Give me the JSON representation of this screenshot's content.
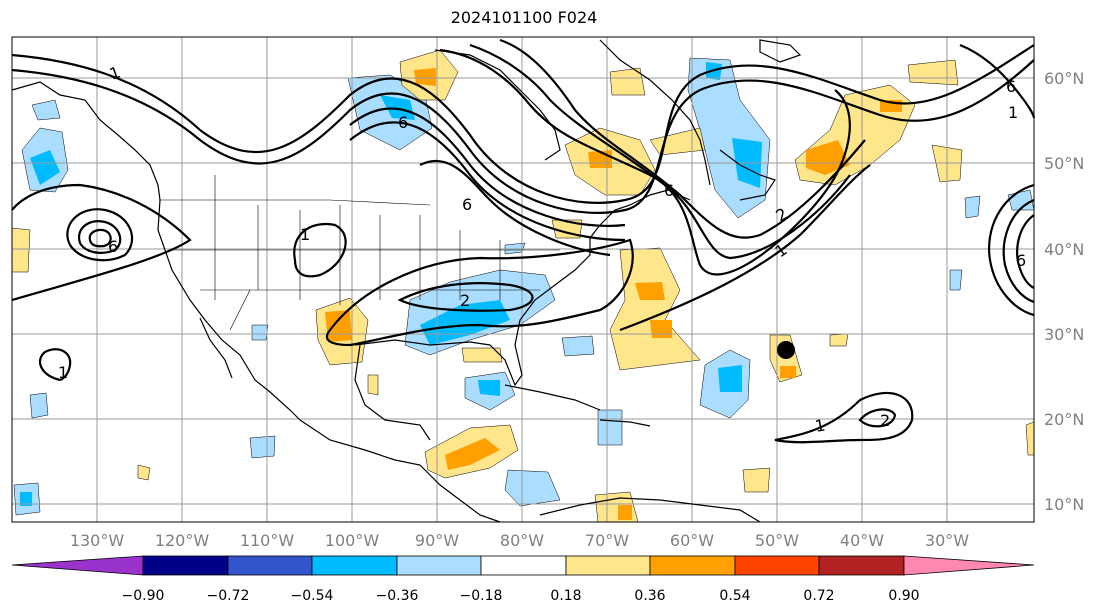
{
  "map": {
    "title": "2024101100 F024",
    "lon_ticks": [
      "130°W",
      "120°W",
      "110°W",
      "100°W",
      "90°W",
      "80°W",
      "70°W",
      "60°W",
      "50°W",
      "40°W",
      "30°W"
    ],
    "lat_ticks": [
      "60°N",
      "50°N",
      "40°N",
      "30°N",
      "20°N",
      "10°N"
    ],
    "contour_labels": [
      "1",
      "1",
      "1",
      "1",
      "1",
      "1",
      "2",
      "2",
      "2",
      "6",
      "6",
      "6",
      "6",
      "6",
      "6"
    ],
    "marker": "storm-center-dot",
    "colors": {
      "land_lines": "#000000",
      "grid": "#999999",
      "axis_text": "#808080"
    }
  },
  "colorbar": {
    "colors": [
      "#9933cc",
      "#000088",
      "#3355cc",
      "#00bbff",
      "#aaddff",
      "#ffffff",
      "#ffe68a",
      "#ffa000",
      "#ff4400",
      "#b22222",
      "#ff88b0"
    ],
    "ticks": [
      "−0.90",
      "−0.72",
      "−0.54",
      "−0.36",
      "−0.18",
      "0.18",
      "0.36",
      "0.54",
      "0.72",
      "0.90"
    ]
  }
}
